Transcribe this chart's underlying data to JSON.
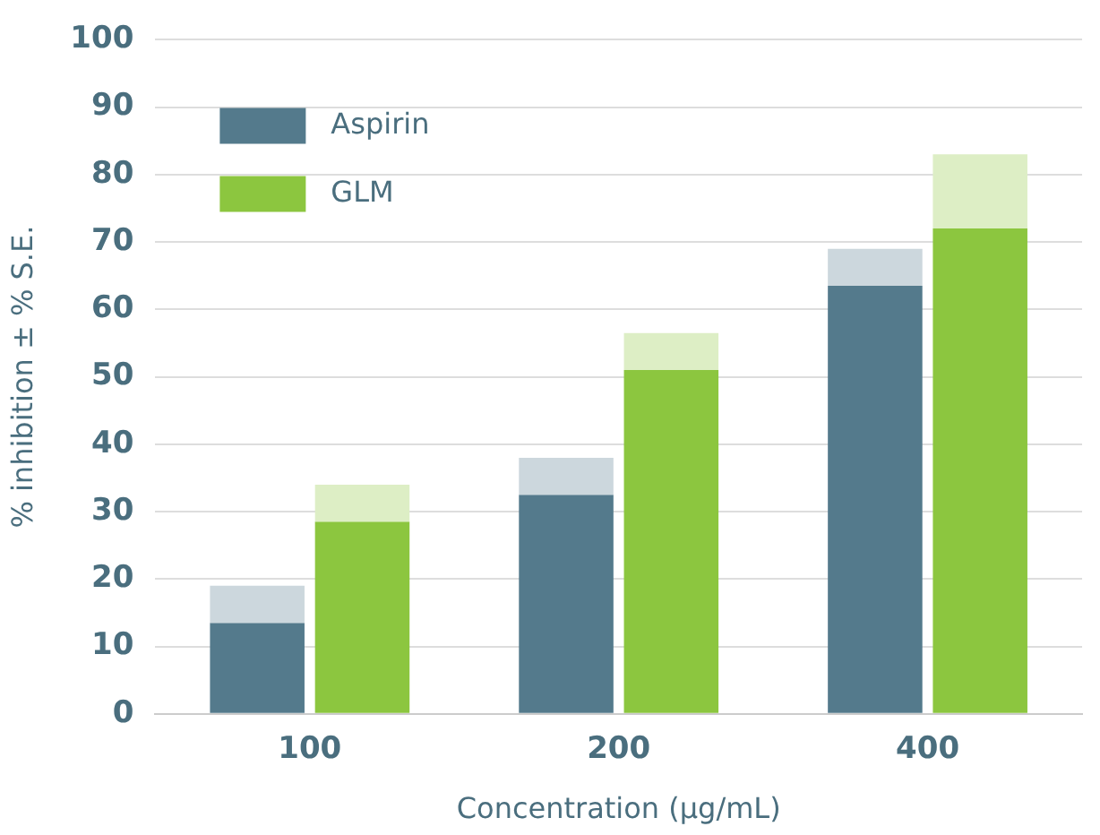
{
  "chart_data": {
    "type": "bar",
    "xlabel": "Concentration (µg/mL)",
    "ylabel": "% inhibition ± % S.E.",
    "categories": [
      "100",
      "200",
      "400"
    ],
    "series": [
      {
        "name": "Aspirin",
        "color": "#547a8c",
        "values": [
          13.5,
          32.5,
          63.5
        ],
        "errors": [
          [
            13.5,
            19
          ],
          [
            32.5,
            38
          ],
          [
            63.5,
            69
          ]
        ]
      },
      {
        "name": "GLM",
        "color": "#8cc63f",
        "values": [
          28.5,
          51,
          72
        ],
        "errors": [
          [
            28.5,
            34
          ],
          [
            51,
            56.5
          ],
          [
            72,
            83
          ]
        ]
      }
    ],
    "ylim": [
      0,
      100
    ],
    "yticks": [
      0,
      10,
      20,
      30,
      40,
      50,
      60,
      70,
      80,
      90,
      100
    ],
    "grid": "y",
    "legend": "top left"
  }
}
